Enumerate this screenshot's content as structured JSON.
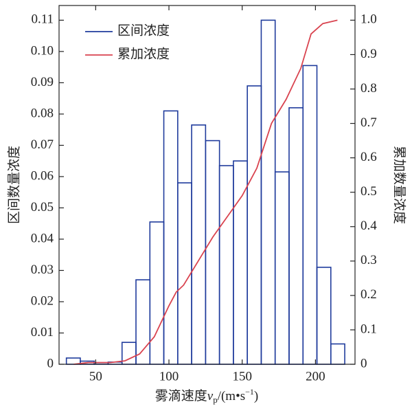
{
  "chart_data": {
    "type": "histogram",
    "y_label": "区间数量浓度",
    "y2_label": "累加数量浓度",
    "x_label": {
      "text": "雾滴速度",
      "var": "v",
      "sub": "p",
      "unit": "/(m•s",
      "sup": "−1",
      "end": ")"
    },
    "bins": [
      30,
      39.5,
      49,
      58.5,
      68,
      77.5,
      87,
      96.5,
      106,
      115.5,
      125,
      134.5,
      144,
      153.5,
      163,
      172.5,
      182,
      191.5,
      201,
      210.5,
      220
    ],
    "series": [
      {
        "name": "区间浓度",
        "color": "#1f3b9c",
        "values": [
          0.002,
          0.001,
          0.0005,
          0.0007,
          0.007,
          0.027,
          0.0455,
          0.081,
          0.058,
          0.0765,
          0.0715,
          0.0635,
          0.065,
          0.089,
          0.11,
          0.0615,
          0.082,
          0.0955,
          0.031,
          0.0065
        ]
      },
      {
        "name": "累加浓度",
        "color": "#d9434f",
        "axis": "y2",
        "type": "line",
        "x": [
          35,
          45,
          60,
          70,
          80,
          90,
          100,
          105,
          110,
          120,
          130,
          140,
          150,
          160,
          170,
          180,
          190,
          197,
          205,
          215
        ],
        "values": [
          0,
          0.005,
          0.005,
          0.01,
          0.03,
          0.08,
          0.17,
          0.21,
          0.23,
          0.3,
          0.37,
          0.43,
          0.49,
          0.57,
          0.7,
          0.77,
          0.86,
          0.96,
          0.99,
          1.0
        ]
      }
    ],
    "xlim": [
      25,
      227
    ],
    "xticks": [
      50,
      100,
      150,
      200
    ],
    "ylim": [
      0,
      0.1147
    ],
    "yticks": [
      0,
      0.01,
      0.02,
      0.03,
      0.04,
      0.05,
      0.06,
      0.07,
      0.08,
      0.09,
      {
        "value": 0.1,
        "label": "0.10"
      },
      0.11
    ],
    "y2lim": [
      0,
      1.0427
    ],
    "y2ticks": [
      0,
      0.1,
      0.2,
      0.3,
      0.4,
      0.5,
      0.6,
      0.7,
      0.8,
      0.9,
      {
        "value": 1,
        "label": "1.0"
      }
    ],
    "legend": "upper left"
  }
}
